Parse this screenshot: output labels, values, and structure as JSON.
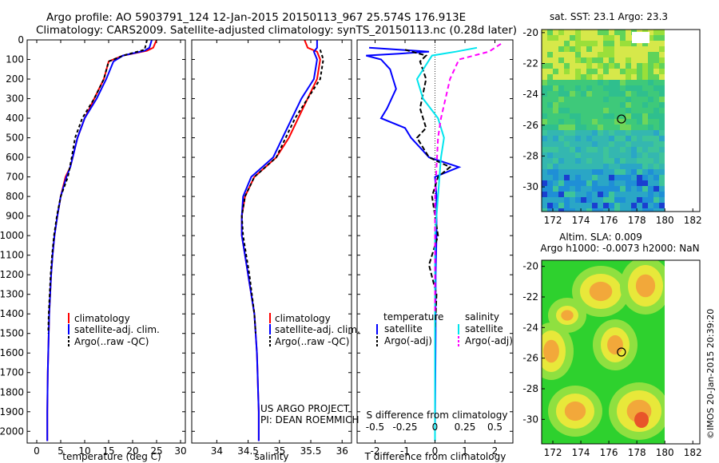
{
  "header": {
    "title_line1": "Argo profile: AO 5903791_124 12-Jan-2015 20150113_967 25.574S 176.913E",
    "title_line2": "Climatology: CARS2009. Satellite-adjusted climatology: synTS_20150113.nc (0.28d later)"
  },
  "credit": "©IMOS 20-Jan-2015 20:39:20",
  "project_text": {
    "line1": "US ARGO PROJECT",
    "line2": "PI: DEAN ROEMMICH"
  },
  "colors": {
    "climatology": "#ff0000",
    "satellite": "#0000ff",
    "argo": "#000000",
    "satellite_salinity": "#00e5ee",
    "argo_salinity": "#ff00ff"
  },
  "chart_data": [
    {
      "id": "temperature",
      "type": "line",
      "xlabel": "temperature (deg C)",
      "ylabel": "",
      "xlim": [
        -2,
        31
      ],
      "ylim": [
        2060,
        0
      ],
      "xticks": [
        0,
        5,
        10,
        15,
        20,
        25,
        30
      ],
      "yticks": [
        0,
        100,
        200,
        300,
        400,
        500,
        600,
        700,
        800,
        900,
        1000,
        1100,
        1200,
        1300,
        1400,
        1500,
        1600,
        1700,
        1800,
        1900,
        2000
      ],
      "legend": [
        "climatology",
        "satellite-adj. clim.",
        "Argo(..raw -QC)"
      ],
      "series": [
        {
          "name": "climatology",
          "color": "#ff0000",
          "dash": "",
          "points": [
            [
              25.0,
              0
            ],
            [
              24.3,
              40
            ],
            [
              23,
              55
            ],
            [
              18,
              80
            ],
            [
              15,
              110
            ],
            [
              14,
              200
            ],
            [
              12,
              300
            ],
            [
              10,
              400
            ],
            [
              8.5,
              500
            ],
            [
              7.5,
              600
            ],
            [
              7,
              650
            ],
            [
              6,
              700
            ],
            [
              5,
              800
            ],
            [
              4.3,
              900
            ],
            [
              3.7,
              1000
            ],
            [
              3.3,
              1100
            ],
            [
              3,
              1200
            ],
            [
              2.8,
              1300
            ],
            [
              2.6,
              1400
            ],
            [
              2.5,
              1500
            ],
            [
              2.4,
              1600
            ],
            [
              2.3,
              1700
            ],
            [
              2.25,
              1800
            ],
            [
              2.2,
              1900
            ],
            [
              2.2,
              2050
            ]
          ]
        },
        {
          "name": "satellite",
          "color": "#0000ff",
          "dash": "",
          "points": [
            [
              24.0,
              0
            ],
            [
              23.5,
              40
            ],
            [
              22.5,
              55
            ],
            [
              18,
              80
            ],
            [
              16,
              110
            ],
            [
              14.5,
              200
            ],
            [
              12.5,
              300
            ],
            [
              10,
              400
            ],
            [
              8.5,
              500
            ],
            [
              7.5,
              600
            ],
            [
              7,
              650
            ],
            [
              6.2,
              700
            ],
            [
              5,
              800
            ],
            [
              4.3,
              900
            ],
            [
              3.7,
              1000
            ],
            [
              3.3,
              1100
            ],
            [
              3,
              1200
            ],
            [
              2.8,
              1300
            ],
            [
              2.6,
              1400
            ],
            [
              2.5,
              1500
            ],
            [
              2.4,
              1600
            ],
            [
              2.3,
              1700
            ],
            [
              2.25,
              1800
            ],
            [
              2.2,
              1900
            ],
            [
              2.2,
              2050
            ]
          ]
        },
        {
          "name": "argo",
          "color": "#000000",
          "dash": "4,3",
          "points": [
            [
              23.0,
              0
            ],
            [
              22.5,
              50
            ],
            [
              18,
              80
            ],
            [
              15,
              110
            ],
            [
              14,
              200
            ],
            [
              12,
              300
            ],
            [
              9.5,
              400
            ],
            [
              8,
              500
            ],
            [
              7.3,
              600
            ],
            [
              6.5,
              700
            ],
            [
              5,
              800
            ],
            [
              4.2,
              900
            ],
            [
              3.6,
              1000
            ],
            [
              3.2,
              1100
            ],
            [
              2.9,
              1200
            ],
            [
              2.7,
              1300
            ],
            [
              2.5,
              1400
            ],
            [
              2.4,
              1500
            ]
          ]
        }
      ]
    },
    {
      "id": "salinity",
      "type": "line",
      "xlabel": "salinity",
      "xlim": [
        33.6,
        36.15
      ],
      "ylim": [
        2060,
        0
      ],
      "xticks": [
        34,
        34.5,
        35,
        35.5,
        36
      ],
      "xticklabels": [
        "34",
        "34.5",
        "35",
        "35.5",
        "36"
      ],
      "legend": [
        "climatology",
        "satellite-adj. clim.",
        "Argo(..raw -QC)"
      ],
      "series": [
        {
          "name": "climatology",
          "color": "#ff0000",
          "dash": "",
          "points": [
            [
              35.4,
              0
            ],
            [
              35.45,
              40
            ],
            [
              35.6,
              60
            ],
            [
              35.65,
              100
            ],
            [
              35.6,
              200
            ],
            [
              35.45,
              300
            ],
            [
              35.3,
              400
            ],
            [
              35.15,
              500
            ],
            [
              34.95,
              600
            ],
            [
              34.6,
              700
            ],
            [
              34.45,
              800
            ],
            [
              34.4,
              900
            ],
            [
              34.4,
              1000
            ],
            [
              34.45,
              1100
            ],
            [
              34.5,
              1200
            ],
            [
              34.55,
              1300
            ],
            [
              34.6,
              1400
            ],
            [
              34.62,
              1500
            ],
            [
              34.64,
              1600
            ],
            [
              34.65,
              1700
            ],
            [
              34.66,
              1800
            ],
            [
              34.67,
              1900
            ],
            [
              34.67,
              2050
            ]
          ]
        },
        {
          "name": "satellite",
          "color": "#0000ff",
          "dash": "",
          "points": [
            [
              35.6,
              0
            ],
            [
              35.6,
              40
            ],
            [
              35.55,
              60
            ],
            [
              35.6,
              100
            ],
            [
              35.55,
              200
            ],
            [
              35.35,
              300
            ],
            [
              35.2,
              400
            ],
            [
              35.05,
              500
            ],
            [
              34.9,
              600
            ],
            [
              34.55,
              700
            ],
            [
              34.42,
              800
            ],
            [
              34.4,
              900
            ],
            [
              34.4,
              1000
            ],
            [
              34.45,
              1100
            ],
            [
              34.5,
              1200
            ],
            [
              34.55,
              1300
            ],
            [
              34.6,
              1400
            ],
            [
              34.62,
              1500
            ],
            [
              34.64,
              1600
            ],
            [
              34.65,
              1700
            ],
            [
              34.66,
              1800
            ],
            [
              34.67,
              1900
            ],
            [
              34.67,
              2050
            ]
          ]
        },
        {
          "name": "argo",
          "color": "#000000",
          "dash": "4,3",
          "points": [
            [
              35.65,
              50
            ],
            [
              35.7,
              100
            ],
            [
              35.65,
              200
            ],
            [
              35.45,
              300
            ],
            [
              35.25,
              400
            ],
            [
              35.1,
              500
            ],
            [
              34.95,
              600
            ],
            [
              34.6,
              700
            ],
            [
              34.45,
              800
            ],
            [
              34.4,
              900
            ],
            [
              34.42,
              1000
            ],
            [
              34.47,
              1100
            ],
            [
              34.52,
              1200
            ],
            [
              34.56,
              1300
            ],
            [
              34.6,
              1400
            ],
            [
              34.62,
              1500
            ]
          ]
        }
      ]
    },
    {
      "id": "difference",
      "type": "line",
      "xlabel": "T difference from climatology",
      "top_axis_label": "S difference from climatology",
      "xlim": [
        -2.6,
        2.6
      ],
      "ylim": [
        2060,
        0
      ],
      "xticks": [
        -2,
        -1,
        0,
        1,
        2
      ],
      "top_xticks": [
        -0.5,
        -0.25,
        0,
        0.25,
        0.5
      ],
      "top_xticklabels": [
        "-0.5",
        "-0.25",
        "0",
        "0.25",
        "0.5"
      ],
      "top_scale": 4,
      "legend_temperature_title": "temperature",
      "legend_salinity_title": "salinity",
      "legend": [
        "satellite",
        "Argo(-adj)",
        "satellite",
        "Argo(-adj)"
      ],
      "series": [
        {
          "name": "temperature satellite",
          "color": "#0000ff",
          "dash": "",
          "points": [
            [
              -2.2,
              40
            ],
            [
              -0.2,
              60
            ],
            [
              -1.2,
              70
            ],
            [
              -2.3,
              80
            ],
            [
              -1.8,
              100
            ],
            [
              -1.5,
              150
            ],
            [
              -1.4,
              200
            ],
            [
              -1.3,
              250
            ],
            [
              -1.6,
              350
            ],
            [
              -1.8,
              400
            ],
            [
              -1.0,
              450
            ],
            [
              -0.8,
              500
            ],
            [
              -0.5,
              550
            ],
            [
              -0.2,
              600
            ],
            [
              0.8,
              650
            ],
            [
              0.0,
              700
            ],
            [
              0.05,
              800
            ],
            [
              0.05,
              1000
            ],
            [
              0.02,
              1200
            ],
            [
              0.02,
              1500
            ],
            [
              0.0,
              2000
            ],
            [
              0.0,
              2050
            ]
          ]
        },
        {
          "name": "temperature argo",
          "color": "#000000",
          "dash": "6,3",
          "points": [
            [
              -1.0,
              50
            ],
            [
              -0.3,
              80
            ],
            [
              -0.5,
              110
            ],
            [
              -0.3,
              200
            ],
            [
              -0.5,
              350
            ],
            [
              -0.3,
              450
            ],
            [
              -0.6,
              500
            ],
            [
              -0.2,
              600
            ],
            [
              0.5,
              650
            ],
            [
              0.1,
              700
            ],
            [
              -0.1,
              800
            ],
            [
              0.1,
              1000
            ],
            [
              -0.2,
              1150
            ],
            [
              0.05,
              1300
            ],
            [
              0.0,
              1500
            ]
          ]
        },
        {
          "name": "salinity satellite",
          "color": "#00e5ee",
          "dash": "",
          "points": [
            [
              1.4,
              40
            ],
            [
              0.7,
              60
            ],
            [
              -0.1,
              80
            ],
            [
              -0.6,
              200
            ],
            [
              -0.4,
              300
            ],
            [
              0.1,
              400
            ],
            [
              0.3,
              500
            ],
            [
              0.2,
              600
            ],
            [
              0.15,
              700
            ],
            [
              0.05,
              900
            ],
            [
              0.0,
              1000
            ],
            [
              0.0,
              2050
            ]
          ]
        },
        {
          "name": "salinity argo",
          "color": "#ff00ff",
          "dash": "6,4",
          "points": [
            [
              2.2,
              20
            ],
            [
              1.8,
              60
            ],
            [
              0.8,
              100
            ],
            [
              0.5,
              200
            ],
            [
              0.2,
              400
            ],
            [
              0.1,
              500
            ],
            [
              0.05,
              650
            ],
            [
              0.0,
              800
            ],
            [
              0.0,
              1000
            ],
            [
              0.0,
              1400
            ]
          ]
        }
      ]
    },
    {
      "id": "sst_map",
      "type": "heatmap",
      "title": "sat. SST: 23.1  Argo: 23.3",
      "xlim": [
        171.2,
        182.5
      ],
      "ylim": [
        -31.6,
        -19.8
      ],
      "xticks": [
        172,
        174,
        176,
        178,
        180,
        182
      ],
      "yticks": [
        -20,
        -22,
        -24,
        -26,
        -28,
        -30
      ],
      "marker": {
        "lon": 176.9,
        "lat": -25.6
      }
    },
    {
      "id": "sla_map",
      "type": "heatmap",
      "title": "Altim. SLA: 0.009",
      "subtitle": "Argo h1000: -0.0073  h2000: NaN",
      "xlim": [
        171.2,
        182.5
      ],
      "ylim": [
        -31.6,
        -19.6
      ],
      "xticks": [
        172,
        174,
        176,
        178,
        180,
        182
      ],
      "yticks": [
        -20,
        -22,
        -24,
        -26,
        -28,
        -30
      ],
      "marker": {
        "lon": 176.9,
        "lat": -25.6
      }
    }
  ]
}
